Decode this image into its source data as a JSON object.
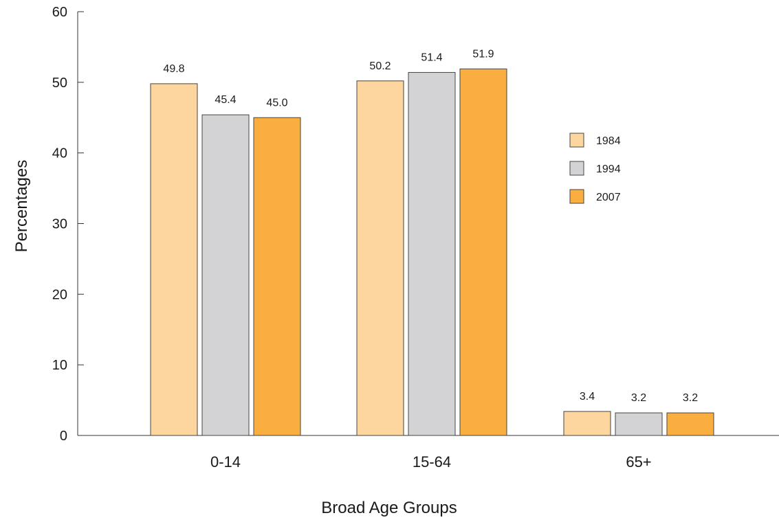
{
  "chart_data": {
    "type": "bar",
    "title": "",
    "xlabel": "Broad Age Groups",
    "ylabel": "Percentages",
    "categories": [
      "0-14",
      "15-64",
      "65+"
    ],
    "ylim": [
      0,
      60
    ],
    "yticks": [
      0,
      10,
      20,
      30,
      40,
      50,
      60
    ],
    "grid": false,
    "legend_position": "right",
    "series": [
      {
        "name": "1984",
        "color": "#fdd59e",
        "values": [
          49.8,
          50.2,
          3.4
        ],
        "labels": [
          "49.8",
          "50.2",
          "3.4"
        ]
      },
      {
        "name": "1994",
        "color": "#d3d3d5",
        "values": [
          45.4,
          51.4,
          3.2
        ],
        "labels": [
          "45.4",
          "51.4",
          "3.2"
        ]
      },
      {
        "name": "2007",
        "color": "#f9ae3f",
        "values": [
          45.0,
          51.9,
          3.2
        ],
        "labels": [
          "45.0",
          "51.9",
          "3.2"
        ]
      }
    ]
  }
}
